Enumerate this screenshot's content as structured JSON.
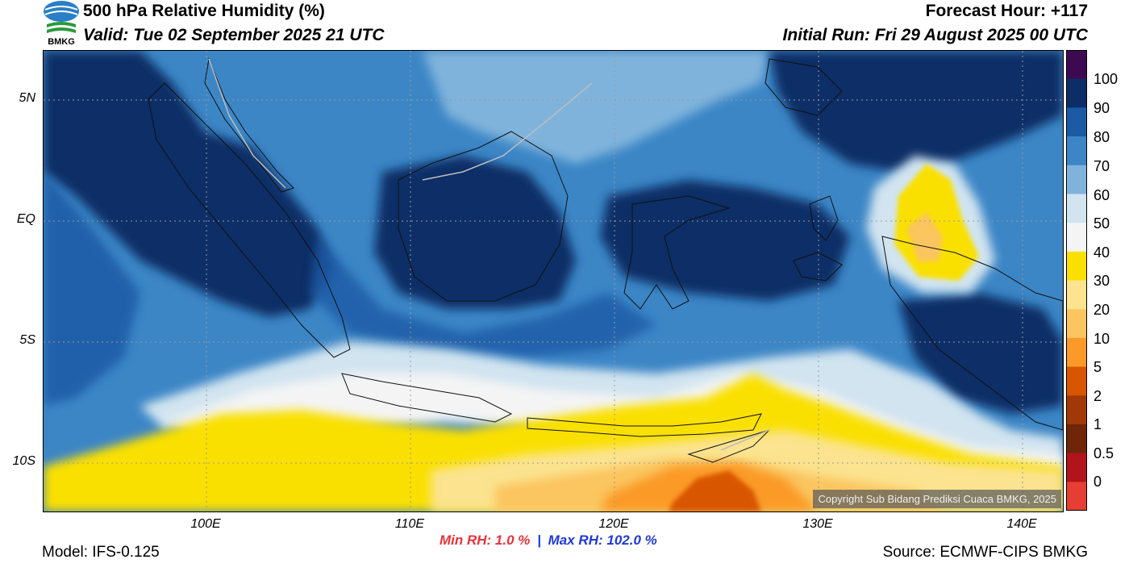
{
  "header": {
    "title": "500 hPa Relative Humidity (%)",
    "valid": "Valid: Tue 02 September 2025 21 UTC",
    "forecast_hour": "Forecast Hour: +117",
    "initial_run": "Initial Run: Fri 29 August 2025 00 UTC"
  },
  "logo": {
    "text": "BMKG",
    "icon": "bmkg-logo-icon"
  },
  "map": {
    "lat_ticks": [
      {
        "label": "5N",
        "value": 5
      },
      {
        "label": "EQ",
        "value": 0
      },
      {
        "label": "5S",
        "value": -5
      },
      {
        "label": "10S",
        "value": -10
      }
    ],
    "lon_ticks": [
      {
        "label": "100E",
        "value": 100
      },
      {
        "label": "110E",
        "value": 110
      },
      {
        "label": "120E",
        "value": 120
      },
      {
        "label": "130E",
        "value": 130
      },
      {
        "label": "140E",
        "value": 140
      }
    ],
    "lon_range": [
      92,
      142
    ],
    "lat_range": [
      -12,
      7
    ],
    "copyright": "Copyright Sub Bidang Prediksi Cuaca BMKG, 2025"
  },
  "colorbar": {
    "labels": [
      "100",
      "90",
      "80",
      "70",
      "60",
      "50",
      "40",
      "30",
      "20",
      "10",
      "5",
      "2",
      "1",
      "0.5",
      "0"
    ],
    "colors": [
      "#3d0a52",
      "#0c2d66",
      "#1c5aa6",
      "#3c86c6",
      "#7fb3dc",
      "#d1e4f0",
      "#f4f4f4",
      "#fae000",
      "#fbe38f",
      "#fbc55f",
      "#fb9a28",
      "#d95600",
      "#a03808",
      "#6e2508",
      "#b1141a",
      "#e63e32"
    ]
  },
  "stats": {
    "min": "Min RH:   1.0 %",
    "separator": "|",
    "max": "Max RH: 102.0 %"
  },
  "footer": {
    "model": "Model: IFS-0.125",
    "source": "Source: ECMWF-CIPS BMKG"
  }
}
